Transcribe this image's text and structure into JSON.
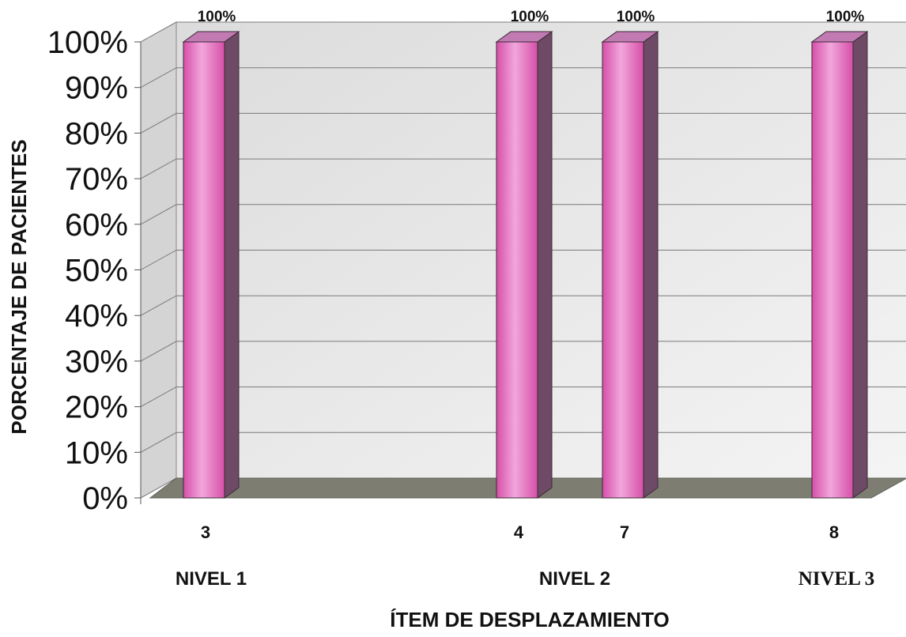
{
  "chart_data": {
    "type": "bar",
    "categories": [
      "3",
      "4",
      "7",
      "8"
    ],
    "values": [
      100,
      100,
      100,
      100
    ],
    "data_labels": [
      "100%",
      "100%",
      "100%",
      "100%"
    ],
    "groups": [
      {
        "label": "NIVEL 1",
        "categories": [
          "3"
        ]
      },
      {
        "label": "NIVEL 2",
        "categories": [
          "4",
          "7"
        ]
      },
      {
        "label": "NIVEL 3",
        "categories": [
          "8"
        ]
      }
    ],
    "ylabel": "PORCENTAJE DE PACIENTES",
    "xlabel": "ÍTEM DE DESPLAZAMIENTO",
    "ylim": [
      0,
      100
    ],
    "yticks": [
      "0%",
      "10%",
      "20%",
      "30%",
      "40%",
      "50%",
      "60%",
      "70%",
      "80%",
      "90%",
      "100%"
    ],
    "grid": true,
    "colors": {
      "bar_front": "#d64fa8",
      "bar_highlight": "#f2a6dc",
      "bar_side": "#6e4a66",
      "bar_top": "#c27bb2",
      "floor": "#7d7d72",
      "wall": "#e8e8e8"
    }
  }
}
